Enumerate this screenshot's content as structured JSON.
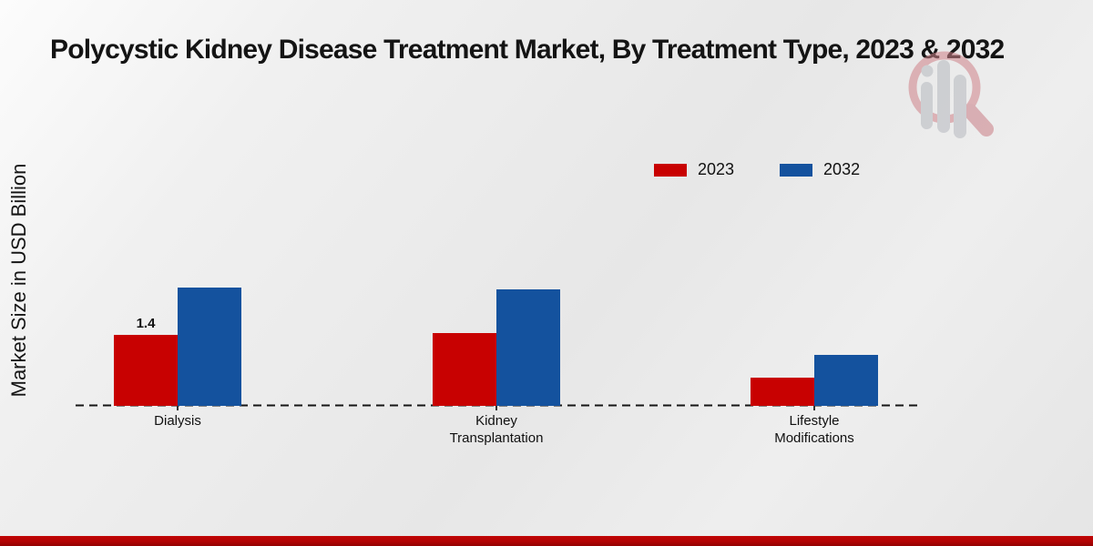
{
  "chart_data": {
    "type": "bar",
    "title": "Polycystic Kidney Disease Treatment Market, By Treatment Type, 2023 & 2032",
    "ylabel": "Market Size in USD Billion",
    "xlabel": "",
    "categories": [
      "Dialysis",
      "Kidney Transplantation",
      "Lifestyle Modifications"
    ],
    "category_label_lines": [
      [
        "Dialysis"
      ],
      [
        "Kidney",
        "Transplantation"
      ],
      [
        "Lifestyle",
        "Modifications"
      ]
    ],
    "series": [
      {
        "name": "2023",
        "color": "#c80101",
        "values": [
          1.4,
          1.45,
          0.55
        ],
        "value_labels": [
          "1.4",
          "",
          ""
        ]
      },
      {
        "name": "2032",
        "color": "#14529e",
        "values": [
          2.35,
          2.3,
          1.0
        ],
        "value_labels": [
          "",
          "",
          ""
        ]
      }
    ],
    "ylim": [
      0,
      2.6
    ],
    "grid": false,
    "legend_position": "top-right",
    "x_axis_style": "dashed",
    "axis_line_color": "#161616"
  },
  "footer_band_color": "#b30303",
  "watermark_icon": "magnifier-bar-chart-logo"
}
